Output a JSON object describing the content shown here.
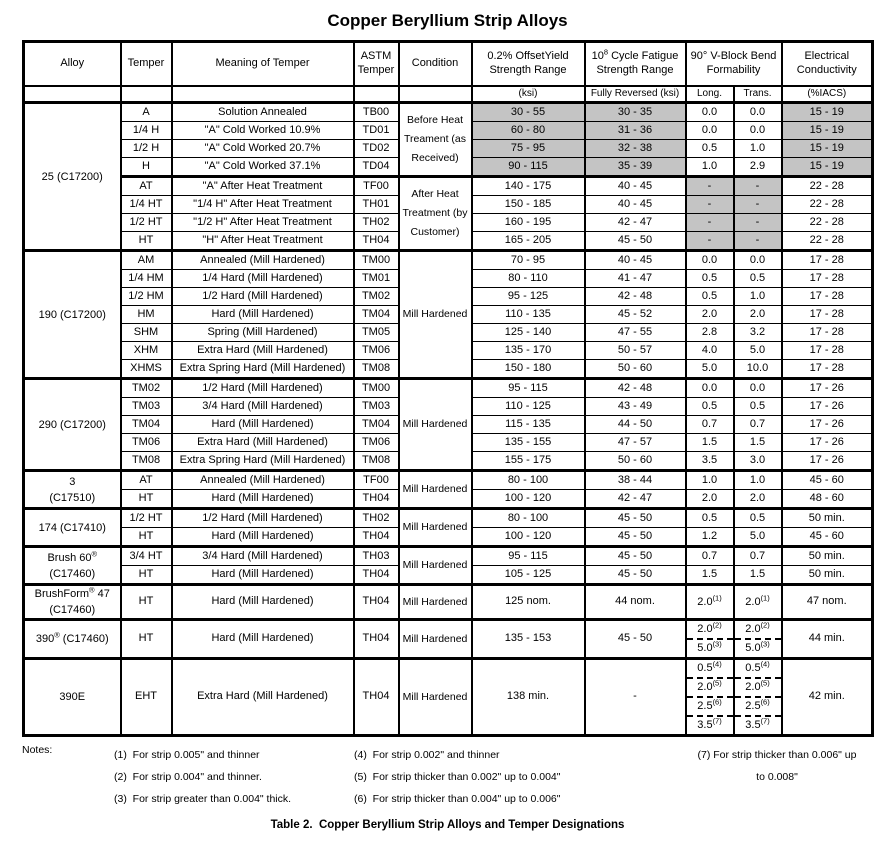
{
  "title": "Copper Beryllium Strip Alloys",
  "caption": "Table 2.  Copper Beryllium Strip Alloys and Temper Designations",
  "colors": {
    "shade": "#c4c4c4",
    "border": "#000000",
    "background": "#ffffff"
  },
  "table": {
    "columns": {
      "alloy": "Alloy",
      "temper": "Temper",
      "meaning": "Meaning of Temper",
      "astm_l1": "ASTM",
      "astm_l2": "Temper",
      "condition": "Condition",
      "yield_l1": "0.2% OffsetYield",
      "yield_l2": "Strength Range",
      "yield_sub": "(ksi)",
      "fatigue_l1_base": "10",
      "fatigue_l1_sup": "8",
      "fatigue_l1_rest": " Cycle Fatigue",
      "fatigue_l2": "Strength Range",
      "fatigue_sub": "Fully Reversed (ksi)",
      "bend_l1": "90° V-Block Bend",
      "bend_l2": "Formability",
      "bend_sub_long": "Long.",
      "bend_sub_trans": "Trans.",
      "cond_l1": "Electrical",
      "cond_l2": "Conductivity",
      "cond_sub": "(%IACS)"
    },
    "groups": [
      {
        "alloy_lines": [
          "25 (C17200)"
        ],
        "blocks": [
          {
            "condition_lines": [
              "Before Heat",
              "Treament (as",
              "Received)"
            ],
            "shade": [
              "yield",
              "fatigue",
              "cond"
            ],
            "rows": [
              {
                "temper": "A",
                "meaning": "Solution Annealed",
                "astm": "TB00",
                "yield": "30 - 55",
                "fatigue": "30 - 35",
                "long": [
                  {
                    "v": "0.0"
                  }
                ],
                "trans": [
                  {
                    "v": "0.0"
                  }
                ],
                "cond": "15 - 19"
              },
              {
                "temper": "1/4 H",
                "meaning": "\"A\" Cold Worked 10.9%",
                "astm": "TD01",
                "yield": "60 - 80",
                "fatigue": "31 - 36",
                "long": [
                  {
                    "v": "0.0"
                  }
                ],
                "trans": [
                  {
                    "v": "0.0"
                  }
                ],
                "cond": "15 - 19"
              },
              {
                "temper": "1/2 H",
                "meaning": "\"A\" Cold Worked 20.7%",
                "astm": "TD02",
                "yield": "75 - 95",
                "fatigue": "32 - 38",
                "long": [
                  {
                    "v": "0.5"
                  }
                ],
                "trans": [
                  {
                    "v": "1.0"
                  }
                ],
                "cond": "15 - 19"
              },
              {
                "temper": "H",
                "meaning": "\"A\" Cold Worked 37.1%",
                "astm": "TD04",
                "yield": "90 - 115",
                "fatigue": "35 - 39",
                "long": [
                  {
                    "v": "1.0"
                  }
                ],
                "trans": [
                  {
                    "v": "2.9"
                  }
                ],
                "cond": "15 - 19"
              }
            ]
          },
          {
            "condition_lines": [
              "After Heat",
              "Treatment (by",
              "Customer)"
            ],
            "shade": [
              "long",
              "trans"
            ],
            "rows": [
              {
                "temper": "AT",
                "meaning": "\"A\" After Heat Treatment",
                "astm": "TF00",
                "yield": "140 - 175",
                "fatigue": "40 - 45",
                "long": [
                  {
                    "v": "-"
                  }
                ],
                "trans": [
                  {
                    "v": "-"
                  }
                ],
                "cond": "22 - 28"
              },
              {
                "temper": "1/4 HT",
                "meaning": "\"1/4 H\" After Heat Treatment",
                "astm": "TH01",
                "yield": "150 - 185",
                "fatigue": "40 - 45",
                "long": [
                  {
                    "v": "-"
                  }
                ],
                "trans": [
                  {
                    "v": "-"
                  }
                ],
                "cond": "22 - 28"
              },
              {
                "temper": "1/2 HT",
                "meaning": "\"1/2 H\" After Heat Treatment",
                "astm": "TH02",
                "yield": "160 - 195",
                "fatigue": "42 - 47",
                "long": [
                  {
                    "v": "-"
                  }
                ],
                "trans": [
                  {
                    "v": "-"
                  }
                ],
                "cond": "22 - 28"
              },
              {
                "temper": "HT",
                "meaning": "\"H\" After Heat Treatment",
                "astm": "TH04",
                "yield": "165 - 205",
                "fatigue": "45 - 50",
                "long": [
                  {
                    "v": "-"
                  }
                ],
                "trans": [
                  {
                    "v": "-"
                  }
                ],
                "cond": "22 - 28"
              }
            ]
          }
        ]
      },
      {
        "alloy_lines": [
          "190 (C17200)"
        ],
        "blocks": [
          {
            "condition_lines": [
              "Mill Hardened"
            ],
            "shade": [],
            "rows": [
              {
                "temper": "AM",
                "meaning": "Annealed (Mill Hardened)",
                "astm": "TM00",
                "yield": "70 - 95",
                "fatigue": "40 - 45",
                "long": [
                  {
                    "v": "0.0"
                  }
                ],
                "trans": [
                  {
                    "v": "0.0"
                  }
                ],
                "cond": "17 - 28"
              },
              {
                "temper": "1/4 HM",
                "meaning": "1/4 Hard (Mill Hardened)",
                "astm": "TM01",
                "yield": "80 - 110",
                "fatigue": "41 - 47",
                "long": [
                  {
                    "v": "0.5"
                  }
                ],
                "trans": [
                  {
                    "v": "0.5"
                  }
                ],
                "cond": "17 - 28"
              },
              {
                "temper": "1/2 HM",
                "meaning": "1/2 Hard (Mill Hardened)",
                "astm": "TM02",
                "yield": "95 - 125",
                "fatigue": "42 - 48",
                "long": [
                  {
                    "v": "0.5"
                  }
                ],
                "trans": [
                  {
                    "v": "1.0"
                  }
                ],
                "cond": "17 - 28"
              },
              {
                "temper": "HM",
                "meaning": "Hard (Mill Hardened)",
                "astm": "TM04",
                "yield": "110 - 135",
                "fatigue": "45 - 52",
                "long": [
                  {
                    "v": "2.0"
                  }
                ],
                "trans": [
                  {
                    "v": "2.0"
                  }
                ],
                "cond": "17 - 28"
              },
              {
                "temper": "SHM",
                "meaning": "Spring (Mill Hardened)",
                "astm": "TM05",
                "yield": "125 - 140",
                "fatigue": "47 - 55",
                "long": [
                  {
                    "v": "2.8"
                  }
                ],
                "trans": [
                  {
                    "v": "3.2"
                  }
                ],
                "cond": "17 - 28"
              },
              {
                "temper": "XHM",
                "meaning": "Extra Hard (Mill Hardened)",
                "astm": "TM06",
                "yield": "135 - 170",
                "fatigue": "50 - 57",
                "long": [
                  {
                    "v": "4.0"
                  }
                ],
                "trans": [
                  {
                    "v": "5.0"
                  }
                ],
                "cond": "17 - 28"
              },
              {
                "temper": "XHMS",
                "meaning": "Extra Spring Hard (Mill Hardened)",
                "astm": "TM08",
                "yield": "150 - 180",
                "fatigue": "50 - 60",
                "long": [
                  {
                    "v": "5.0"
                  }
                ],
                "trans": [
                  {
                    "v": "10.0"
                  }
                ],
                "cond": "17 - 28"
              }
            ]
          }
        ]
      },
      {
        "alloy_lines": [
          "290 (C17200)"
        ],
        "blocks": [
          {
            "condition_lines": [
              "Mill Hardened"
            ],
            "shade": [],
            "rows": [
              {
                "temper": "TM02",
                "meaning": "1/2 Hard (Mill Hardened)",
                "astm": "TM00",
                "yield": "95 - 115",
                "fatigue": "42 - 48",
                "long": [
                  {
                    "v": "0.0"
                  }
                ],
                "trans": [
                  {
                    "v": "0.0"
                  }
                ],
                "cond": "17 - 26"
              },
              {
                "temper": "TM03",
                "meaning": "3/4 Hard (Mill Hardened)",
                "astm": "TM03",
                "yield": "110 - 125",
                "fatigue": "43 - 49",
                "long": [
                  {
                    "v": "0.5"
                  }
                ],
                "trans": [
                  {
                    "v": "0.5"
                  }
                ],
                "cond": "17 - 26"
              },
              {
                "temper": "TM04",
                "meaning": "Hard (Mill Hardened)",
                "astm": "TM04",
                "yield": "115 - 135",
                "fatigue": "44 - 50",
                "long": [
                  {
                    "v": "0.7"
                  }
                ],
                "trans": [
                  {
                    "v": "0.7"
                  }
                ],
                "cond": "17 - 26"
              },
              {
                "temper": "TM06",
                "meaning": "Extra Hard (Mill Hardened)",
                "astm": "TM06",
                "yield": "135 - 155",
                "fatigue": "47 - 57",
                "long": [
                  {
                    "v": "1.5"
                  }
                ],
                "trans": [
                  {
                    "v": "1.5"
                  }
                ],
                "cond": "17 - 26"
              },
              {
                "temper": "TM08",
                "meaning": "Extra Spring Hard (Mill Hardened)",
                "astm": "TM08",
                "yield": "155 - 175",
                "fatigue": "50 - 60",
                "long": [
                  {
                    "v": "3.5"
                  }
                ],
                "trans": [
                  {
                    "v": "3.0"
                  }
                ],
                "cond": "17 - 26"
              }
            ]
          }
        ]
      },
      {
        "alloy_lines": [
          "3",
          "(C17510)"
        ],
        "blocks": [
          {
            "condition_lines": [
              "Mill Hardened"
            ],
            "shade": [],
            "rows": [
              {
                "temper": "AT",
                "meaning": "Annealed (Mill Hardened)",
                "astm": "TF00",
                "yield": "80 - 100",
                "fatigue": "38 - 44",
                "long": [
                  {
                    "v": "1.0"
                  }
                ],
                "trans": [
                  {
                    "v": "1.0"
                  }
                ],
                "cond": "45 - 60"
              },
              {
                "temper": "HT",
                "meaning": "Hard (Mill Hardened)",
                "astm": "TH04",
                "yield": "100 - 120",
                "fatigue": "42 - 47",
                "long": [
                  {
                    "v": "2.0"
                  }
                ],
                "trans": [
                  {
                    "v": "2.0"
                  }
                ],
                "cond": "48 - 60"
              }
            ]
          }
        ]
      },
      {
        "alloy_lines": [
          "174 (C17410)"
        ],
        "blocks": [
          {
            "condition_lines": [
              "Mill Hardened"
            ],
            "shade": [],
            "rows": [
              {
                "temper": "1/2 HT",
                "meaning": "1/2 Hard (Mill Hardened)",
                "astm": "TH02",
                "yield": "80 - 100",
                "fatigue": "45 - 50",
                "long": [
                  {
                    "v": "0.5"
                  }
                ],
                "trans": [
                  {
                    "v": "0.5"
                  }
                ],
                "cond": "50 min."
              },
              {
                "temper": "HT",
                "meaning": "Hard (Mill Hardened)",
                "astm": "TH04",
                "yield": "100 - 120",
                "fatigue": "45 - 50",
                "long": [
                  {
                    "v": "1.2"
                  }
                ],
                "trans": [
                  {
                    "v": "5.0"
                  }
                ],
                "cond": "45 - 60"
              }
            ]
          }
        ]
      },
      {
        "alloy_lines": [
          "Brush 60®",
          "(C17460)"
        ],
        "blocks": [
          {
            "condition_lines": [
              "Mill Hardened"
            ],
            "shade": [],
            "rows": [
              {
                "temper": "3/4 HT",
                "meaning": "3/4 Hard (Mill Hardened)",
                "astm": "TH03",
                "yield": "95 - 115",
                "fatigue": "45 - 50",
                "long": [
                  {
                    "v": "0.7"
                  }
                ],
                "trans": [
                  {
                    "v": "0.7"
                  }
                ],
                "cond": "50 min."
              },
              {
                "temper": "HT",
                "meaning": "Hard (Mill Hardened)",
                "astm": "TH04",
                "yield": "105 - 125",
                "fatigue": "45 - 50",
                "long": [
                  {
                    "v": "1.5"
                  }
                ],
                "trans": [
                  {
                    "v": "1.5"
                  }
                ],
                "cond": "50 min."
              }
            ]
          }
        ]
      },
      {
        "alloy_lines": [
          "BrushForm® 47",
          "(C17460)"
        ],
        "blocks": [
          {
            "condition_lines": [
              "Mill Hardened"
            ],
            "shade": [],
            "rows": [
              {
                "temper": "HT",
                "meaning": "Hard (Mill Hardened)",
                "astm": "TH04",
                "yield": "125 nom.",
                "fatigue": "44 nom.",
                "long": [
                  {
                    "v": "2.0",
                    "sup": "(1)"
                  }
                ],
                "trans": [
                  {
                    "v": "2.0",
                    "sup": "(1)"
                  }
                ],
                "cond": "47 nom."
              }
            ]
          }
        ]
      },
      {
        "alloy_lines": [
          "390® (C17460)"
        ],
        "blocks": [
          {
            "condition_lines": [
              "Mill Hardened"
            ],
            "shade": [],
            "rows": [
              {
                "temper": "HT",
                "meaning": "Hard (Mill Hardened)",
                "astm": "TH04",
                "yield": "135 - 153",
                "fatigue": "45 - 50",
                "long": [
                  {
                    "v": "2.0",
                    "sup": "(2)"
                  },
                  {
                    "v": "5.0",
                    "sup": "(3)"
                  }
                ],
                "trans": [
                  {
                    "v": "2.0",
                    "sup": "(2)"
                  },
                  {
                    "v": "5.0",
                    "sup": "(3)"
                  }
                ],
                "cond": "44 min."
              }
            ]
          }
        ]
      },
      {
        "alloy_lines": [
          "390E"
        ],
        "blocks": [
          {
            "condition_lines": [
              "Mill Hardened"
            ],
            "shade": [],
            "rows": [
              {
                "temper": "EHT",
                "meaning": "Extra Hard (Mill Hardened)",
                "astm": "TH04",
                "yield": "138 min.",
                "fatigue": "-",
                "long": [
                  {
                    "v": "0.5",
                    "sup": "(4)"
                  },
                  {
                    "v": "2.0",
                    "sup": "(5)"
                  },
                  {
                    "v": "2.5",
                    "sup": "(6)"
                  },
                  {
                    "v": "3.5",
                    "sup": "(7)"
                  }
                ],
                "trans": [
                  {
                    "v": "0.5",
                    "sup": "(4)"
                  },
                  {
                    "v": "2.0",
                    "sup": "(5)"
                  },
                  {
                    "v": "2.5",
                    "sup": "(6)"
                  },
                  {
                    "v": "3.5",
                    "sup": "(7)"
                  }
                ],
                "cond": "42 min."
              }
            ]
          }
        ]
      }
    ]
  },
  "notes": {
    "label": "Notes:",
    "col1": [
      "(1)  For strip 0.005\" and thinner",
      "(2)  For strip 0.004\" and thinner.",
      "(3)  For strip greater than 0.004\" thick."
    ],
    "col2": [
      "(4)  For strip 0.002\" and thinner",
      "(5)  For strip thicker than 0.002\" up to 0.004\"",
      "(6)  For strip thicker than 0.004\" up to 0.006\""
    ],
    "col3": [
      "(7) For strip thicker than 0.006\" up",
      "to 0.008\""
    ]
  }
}
